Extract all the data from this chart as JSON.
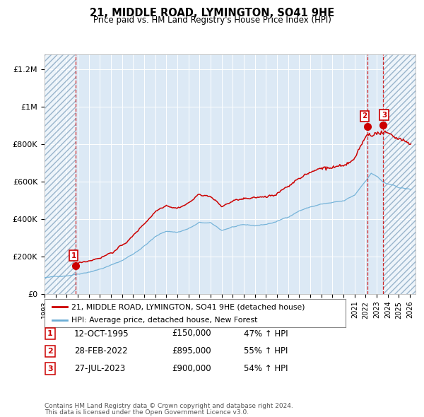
{
  "title": "21, MIDDLE ROAD, LYMINGTON, SO41 9HE",
  "subtitle": "Price paid vs. HM Land Registry's House Price Index (HPI)",
  "transactions": [
    {
      "index": 1,
      "date": "12-OCT-1995",
      "year": 1995.78,
      "price": 150000,
      "pct": "47%",
      "direction": "↑"
    },
    {
      "index": 2,
      "date": "28-FEB-2022",
      "year": 2022.16,
      "price": 895000,
      "pct": "55%",
      "direction": "↑"
    },
    {
      "index": 3,
      "date": "27-JUL-2023",
      "year": 2023.57,
      "price": 900000,
      "pct": "54%",
      "direction": "↑"
    }
  ],
  "hatch_left_end": 1995.78,
  "hatch_right_start": 2023.57,
  "xmin": 1993.0,
  "xmax": 2026.5,
  "ymin": 0,
  "ymax": 1280000,
  "background_color": "#dce9f5",
  "legend_line1": "21, MIDDLE ROAD, LYMINGTON, SO41 9HE (detached house)",
  "legend_line2": "HPI: Average price, detached house, New Forest",
  "footer1": "Contains HM Land Registry data © Crown copyright and database right 2024.",
  "footer2": "This data is licensed under the Open Government Licence v3.0.",
  "yticks": [
    0,
    200000,
    400000,
    600000,
    800000,
    1000000,
    1200000
  ],
  "ytick_labels": [
    "£0",
    "£200K",
    "£400K",
    "£600K",
    "£800K",
    "£1M",
    "£1.2M"
  ],
  "xticks": [
    1993,
    1994,
    1995,
    1996,
    1997,
    1998,
    1999,
    2000,
    2001,
    2002,
    2003,
    2004,
    2005,
    2006,
    2007,
    2008,
    2009,
    2010,
    2011,
    2012,
    2013,
    2014,
    2015,
    2016,
    2017,
    2018,
    2019,
    2020,
    2021,
    2022,
    2023,
    2024,
    2025,
    2026
  ],
  "red_color": "#cc0000",
  "blue_color": "#6baed6",
  "hatch_bg": "#c8d8e8"
}
